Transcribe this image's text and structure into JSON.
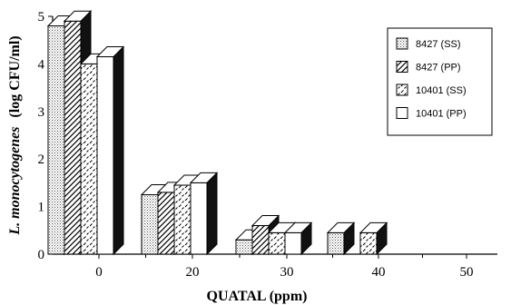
{
  "chart_data": {
    "type": "bar",
    "title": "",
    "xlabel": "QUATAL  (ppm)",
    "ylabel_italic": "L. monocytogenes",
    "ylabel_rest": "(log CFU/ml)",
    "categories": [
      "0",
      "20",
      "30",
      "40",
      "50"
    ],
    "yticks": [
      "0",
      "1",
      "2",
      "3",
      "4",
      "5"
    ],
    "ylim": [
      0,
      5
    ],
    "grid": false,
    "legend_position": "top-right",
    "series": [
      {
        "name": "8427 (SS)",
        "pattern": "dots",
        "values": [
          4.8,
          1.25,
          0.3,
          0.45,
          null
        ]
      },
      {
        "name": "8427 (PP)",
        "pattern": "diagonal",
        "values": [
          4.9,
          1.3,
          0.6,
          null,
          null
        ]
      },
      {
        "name": "10401 (SS)",
        "pattern": "dashes",
        "values": [
          4.0,
          1.45,
          0.45,
          0.45,
          null
        ]
      },
      {
        "name": "10401 (PP)",
        "pattern": "blank",
        "values": [
          4.15,
          1.5,
          0.45,
          null,
          null
        ]
      }
    ]
  }
}
